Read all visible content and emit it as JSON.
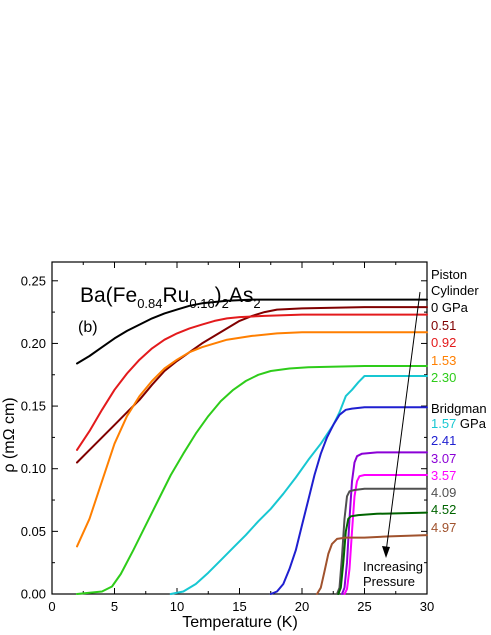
{
  "chart_data": {
    "type": "line",
    "title_parts": {
      "base": "Ba(Fe",
      "sub1": "0.84",
      "mid": "Ru",
      "sub2": "0.16",
      "tail": ")",
      "sub3": "2",
      "end": "As",
      "sub4": "2"
    },
    "panel_label": "(b)",
    "xlabel": "Temperature (K)",
    "ylabel": "ρ (mΩ cm)",
    "xlim": [
      0,
      30
    ],
    "ylim": [
      0,
      0.265
    ],
    "xticks": [
      "0",
      "5",
      "10",
      "15",
      "20",
      "25",
      "30"
    ],
    "xtick_values": [
      0,
      5,
      10,
      15,
      20,
      25,
      30
    ],
    "yticks": [
      "0.00",
      "0.05",
      "0.10",
      "0.15",
      "0.20",
      "0.25"
    ],
    "ytick_values": [
      0,
      0.05,
      0.1,
      0.15,
      0.2,
      0.25
    ],
    "legend_groups": {
      "piston_line1": "Piston",
      "piston_line2": "Cylinder",
      "bridgman": "Bridgman"
    },
    "annotation": {
      "line1": "Increasing",
      "line2": "Pressure"
    },
    "series": [
      {
        "label": "0 GPa",
        "color": "#000000",
        "points": [
          [
            2,
            0.184
          ],
          [
            3,
            0.19
          ],
          [
            4,
            0.197
          ],
          [
            5,
            0.204
          ],
          [
            6,
            0.21
          ],
          [
            7,
            0.215
          ],
          [
            8,
            0.22
          ],
          [
            9,
            0.224
          ],
          [
            10,
            0.227
          ],
          [
            11,
            0.23
          ],
          [
            12,
            0.232
          ],
          [
            14,
            0.234
          ],
          [
            16,
            0.235
          ],
          [
            20,
            0.235
          ],
          [
            25,
            0.235
          ],
          [
            30,
            0.235
          ]
        ]
      },
      {
        "label": "0.51",
        "color": "#800000",
        "points": [
          [
            2,
            0.105
          ],
          [
            3,
            0.115
          ],
          [
            4,
            0.125
          ],
          [
            5,
            0.135
          ],
          [
            6,
            0.145
          ],
          [
            7,
            0.155
          ],
          [
            8,
            0.167
          ],
          [
            9,
            0.178
          ],
          [
            10,
            0.186
          ],
          [
            11,
            0.193
          ],
          [
            12,
            0.2
          ],
          [
            13,
            0.206
          ],
          [
            14,
            0.212
          ],
          [
            15,
            0.218
          ],
          [
            16,
            0.222
          ],
          [
            17,
            0.225
          ],
          [
            18,
            0.227
          ],
          [
            20,
            0.228
          ],
          [
            25,
            0.229
          ],
          [
            30,
            0.229
          ]
        ]
      },
      {
        "label": "0.92",
        "color": "#e31a1c",
        "points": [
          [
            2,
            0.115
          ],
          [
            3,
            0.13
          ],
          [
            4,
            0.147
          ],
          [
            5,
            0.163
          ],
          [
            6,
            0.176
          ],
          [
            7,
            0.187
          ],
          [
            8,
            0.196
          ],
          [
            9,
            0.203
          ],
          [
            10,
            0.208
          ],
          [
            11,
            0.212
          ],
          [
            12,
            0.215
          ],
          [
            13,
            0.218
          ],
          [
            14,
            0.22
          ],
          [
            15,
            0.221
          ],
          [
            17,
            0.222
          ],
          [
            20,
            0.223
          ],
          [
            25,
            0.223
          ],
          [
            30,
            0.223
          ]
        ]
      },
      {
        "label": "1.53",
        "color": "#ff7f00",
        "points": [
          [
            2,
            0.038
          ],
          [
            3,
            0.06
          ],
          [
            4,
            0.09
          ],
          [
            5,
            0.12
          ],
          [
            6,
            0.142
          ],
          [
            7,
            0.158
          ],
          [
            8,
            0.17
          ],
          [
            9,
            0.18
          ],
          [
            10,
            0.187
          ],
          [
            11,
            0.193
          ],
          [
            12,
            0.197
          ],
          [
            13,
            0.2
          ],
          [
            14,
            0.203
          ],
          [
            16,
            0.206
          ],
          [
            18,
            0.208
          ],
          [
            20,
            0.209
          ],
          [
            25,
            0.209
          ],
          [
            30,
            0.209
          ]
        ]
      },
      {
        "label": "2.30",
        "color": "#2ecc1a",
        "points": [
          [
            2,
            0.0
          ],
          [
            3,
            0.001
          ],
          [
            4,
            0.002
          ],
          [
            4.8,
            0.006
          ],
          [
            5.5,
            0.016
          ],
          [
            6.5,
            0.035
          ],
          [
            7.5,
            0.055
          ],
          [
            8.5,
            0.075
          ],
          [
            9.5,
            0.095
          ],
          [
            10.5,
            0.112
          ],
          [
            11.5,
            0.128
          ],
          [
            12.5,
            0.142
          ],
          [
            13.5,
            0.154
          ],
          [
            14.5,
            0.163
          ],
          [
            15.5,
            0.17
          ],
          [
            16.5,
            0.175
          ],
          [
            17.5,
            0.178
          ],
          [
            19,
            0.18
          ],
          [
            20.5,
            0.181
          ],
          [
            25,
            0.182
          ],
          [
            30,
            0.182
          ]
        ]
      },
      {
        "label": "1.57",
        "color": "#17c7d2",
        "points": [
          [
            9.5,
            0.0
          ],
          [
            10.5,
            0.002
          ],
          [
            11.5,
            0.008
          ],
          [
            12.5,
            0.017
          ],
          [
            13.5,
            0.027
          ],
          [
            14.5,
            0.037
          ],
          [
            15.5,
            0.047
          ],
          [
            16.5,
            0.058
          ],
          [
            17.5,
            0.068
          ],
          [
            18.5,
            0.08
          ],
          [
            19.5,
            0.093
          ],
          [
            20.5,
            0.107
          ],
          [
            21.5,
            0.12
          ],
          [
            22.5,
            0.135
          ],
          [
            23,
            0.145
          ],
          [
            23.5,
            0.158
          ],
          [
            24,
            0.163
          ],
          [
            24.5,
            0.169
          ],
          [
            25,
            0.174
          ],
          [
            27,
            0.174
          ],
          [
            30,
            0.174
          ]
        ]
      },
      {
        "label": "2.41",
        "color": "#1f1fd0",
        "points": [
          [
            17.5,
            0.0
          ],
          [
            18,
            0.002
          ],
          [
            18.5,
            0.008
          ],
          [
            19,
            0.02
          ],
          [
            19.5,
            0.035
          ],
          [
            20,
            0.055
          ],
          [
            20.5,
            0.075
          ],
          [
            21,
            0.095
          ],
          [
            21.5,
            0.112
          ],
          [
            22,
            0.125
          ],
          [
            22.5,
            0.135
          ],
          [
            23,
            0.143
          ],
          [
            23.5,
            0.147
          ],
          [
            24,
            0.148
          ],
          [
            25,
            0.149
          ],
          [
            30,
            0.149
          ]
        ]
      },
      {
        "label": "3.07",
        "color": "#8b00d6",
        "points": [
          [
            23.2,
            0.0
          ],
          [
            23.4,
            0.005
          ],
          [
            23.6,
            0.025
          ],
          [
            23.8,
            0.06
          ],
          [
            24.0,
            0.09
          ],
          [
            24.2,
            0.105
          ],
          [
            24.4,
            0.11
          ],
          [
            24.8,
            0.112
          ],
          [
            26,
            0.113
          ],
          [
            30,
            0.113
          ]
        ]
      },
      {
        "label": "3.57",
        "color": "#ff00ff",
        "points": [
          [
            23.4,
            0.0
          ],
          [
            23.6,
            0.004
          ],
          [
            23.8,
            0.02
          ],
          [
            24.0,
            0.05
          ],
          [
            24.2,
            0.078
          ],
          [
            24.4,
            0.09
          ],
          [
            24.6,
            0.094
          ],
          [
            25,
            0.095
          ],
          [
            27,
            0.095
          ],
          [
            30,
            0.095
          ]
        ]
      },
      {
        "label": "4.09",
        "color": "#505050",
        "points": [
          [
            22.8,
            0.0
          ],
          [
            23.0,
            0.005
          ],
          [
            23.2,
            0.03
          ],
          [
            23.4,
            0.06
          ],
          [
            23.6,
            0.078
          ],
          [
            23.8,
            0.082
          ],
          [
            24.2,
            0.083
          ],
          [
            25,
            0.084
          ],
          [
            30,
            0.084
          ]
        ]
      },
      {
        "label": "4.52",
        "color": "#006400",
        "points": [
          [
            22.9,
            0.0
          ],
          [
            23.1,
            0.005
          ],
          [
            23.3,
            0.025
          ],
          [
            23.5,
            0.05
          ],
          [
            23.7,
            0.06
          ],
          [
            23.9,
            0.062
          ],
          [
            24.5,
            0.063
          ],
          [
            26,
            0.064
          ],
          [
            30,
            0.065
          ]
        ]
      },
      {
        "label": "4.97",
        "color": "#a0522d",
        "points": [
          [
            21.2,
            0.0
          ],
          [
            21.5,
            0.005
          ],
          [
            21.8,
            0.018
          ],
          [
            22.1,
            0.032
          ],
          [
            22.4,
            0.04
          ],
          [
            22.8,
            0.044
          ],
          [
            23.5,
            0.045
          ],
          [
            25,
            0.045
          ],
          [
            27,
            0.046
          ],
          [
            30,
            0.047
          ]
        ]
      }
    ],
    "legend_entries": [
      {
        "text": "0 GPa",
        "color": "#000000"
      },
      {
        "text": "0.51",
        "color": "#800000"
      },
      {
        "text": "0.92",
        "color": "#e31a1c"
      },
      {
        "text": "1.53",
        "color": "#ff7f00"
      },
      {
        "text": "2.30",
        "color": "#2ecc1a"
      },
      {
        "text": "1.57",
        "color": "#17c7d2",
        "suffix": " GPa"
      },
      {
        "text": "2.41",
        "color": "#1f1fd0"
      },
      {
        "text": "3.07",
        "color": "#8b00d6"
      },
      {
        "text": "3.57",
        "color": "#ff00ff"
      },
      {
        "text": "4.09",
        "color": "#505050"
      },
      {
        "text": "4.52",
        "color": "#006400"
      },
      {
        "text": "4.97",
        "color": "#a0522d"
      }
    ]
  }
}
